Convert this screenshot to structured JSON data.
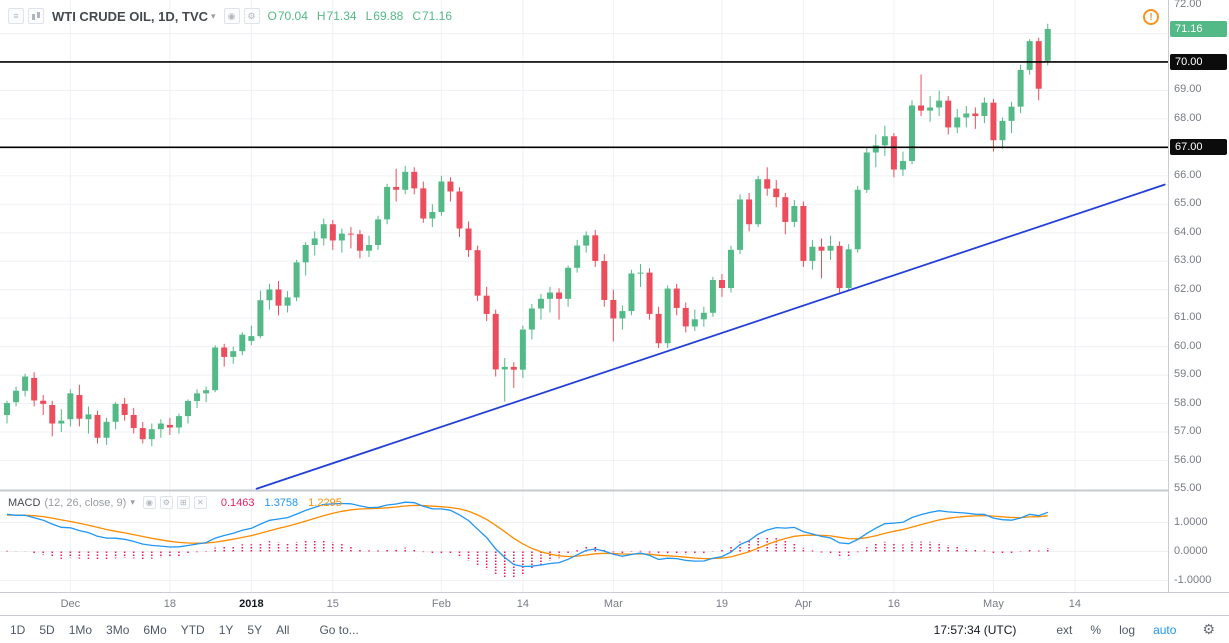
{
  "icons": {
    "menu": "≡",
    "caret": "▾",
    "eye": "◉",
    "gear": "⚙",
    "maximize": "⊞",
    "close": "✕",
    "alert": "!"
  },
  "colors": {
    "up": "#53b987",
    "down": "#eb4d5c",
    "trendline": "#2440d6",
    "hline": "#000000",
    "macd": "#2196f3",
    "signal": "#fb8c00",
    "hist": "#e91e63",
    "grid": "#eef0f4",
    "axis_text": "#787b86",
    "badge_green": "#53b987",
    "badge_black": "#0c0c0c"
  },
  "header": {
    "title": "WTI CRUDE OIL, 1D, TVC",
    "ohlc": {
      "o_label": "O",
      "o_value": "70.04",
      "h_label": "H",
      "h_value": "71.34",
      "l_label": "L",
      "l_value": "69.88",
      "c_label": "C",
      "c_value": "71.16"
    }
  },
  "chart_data": {
    "type": "candlestick",
    "symbol": "WTI CRUDE OIL",
    "interval": "1D",
    "exchange": "TVC",
    "price_axis": {
      "min": 55,
      "max": 72,
      "plain_ticks": [
        {
          "v": 72,
          "label": "72.00"
        },
        {
          "v": 69,
          "label": "69.00"
        },
        {
          "v": 68,
          "label": "68.00"
        },
        {
          "v": 66,
          "label": "66.00"
        },
        {
          "v": 65,
          "label": "65.00"
        },
        {
          "v": 64,
          "label": "64.00"
        },
        {
          "v": 63,
          "label": "63.00"
        },
        {
          "v": 62,
          "label": "62.00"
        },
        {
          "v": 61,
          "label": "61.00"
        },
        {
          "v": 60,
          "label": "60.00"
        },
        {
          "v": 59,
          "label": "59.00"
        },
        {
          "v": 58,
          "label": "58.00"
        },
        {
          "v": 57,
          "label": "57.00"
        },
        {
          "v": 56,
          "label": "56.00"
        },
        {
          "v": 55,
          "label": "55.00"
        }
      ],
      "badges": [
        {
          "v": 71.16,
          "label": "71.16",
          "bg": "#53b987"
        },
        {
          "v": 70.0,
          "label": "70.00",
          "bg": "#0c0c0c"
        },
        {
          "v": 67.0,
          "label": "67.00",
          "bg": "#0c0c0c"
        }
      ]
    },
    "horizontal_lines": [
      {
        "price": 70.0,
        "label": "70.00"
      },
      {
        "price": 67.0,
        "label": "67.00"
      }
    ],
    "trendline": {
      "from": {
        "index": 27.5,
        "price": 55.0
      },
      "to": {
        "index": 128,
        "price": 65.7
      }
    },
    "time_labels": [
      {
        "label": "Dec",
        "index": 7,
        "type": "month"
      },
      {
        "label": "18",
        "index": 18,
        "type": "day"
      },
      {
        "label": "2018",
        "index": 27,
        "type": "year"
      },
      {
        "label": "15",
        "index": 36,
        "type": "day"
      },
      {
        "label": "Feb",
        "index": 48,
        "type": "month"
      },
      {
        "label": "14",
        "index": 57,
        "type": "day"
      },
      {
        "label": "Mar",
        "index": 67,
        "type": "month"
      },
      {
        "label": "19",
        "index": 79,
        "type": "day"
      },
      {
        "label": "Apr",
        "index": 88,
        "type": "month"
      },
      {
        "label": "16",
        "index": 98,
        "type": "day"
      },
      {
        "label": "May",
        "index": 109,
        "type": "month"
      },
      {
        "label": "14",
        "index": 118,
        "type": "day"
      }
    ],
    "candles": [
      [
        57.6,
        58.1,
        57.3,
        58.02
      ],
      [
        58.05,
        58.6,
        57.9,
        58.45
      ],
      [
        58.45,
        59.05,
        58.25,
        58.95
      ],
      [
        58.9,
        59.1,
        57.9,
        58.11
      ],
      [
        58.1,
        58.3,
        57.6,
        57.99
      ],
      [
        57.95,
        58.1,
        56.85,
        57.3
      ],
      [
        57.3,
        57.8,
        57.0,
        57.4
      ],
      [
        57.45,
        58.5,
        57.2,
        58.36
      ],
      [
        58.3,
        58.66,
        57.2,
        57.47
      ],
      [
        57.45,
        57.9,
        56.95,
        57.62
      ],
      [
        57.6,
        57.75,
        56.6,
        56.8
      ],
      [
        56.8,
        57.5,
        56.55,
        57.36
      ],
      [
        57.36,
        58.05,
        57.1,
        57.99
      ],
      [
        57.99,
        58.2,
        57.4,
        57.6
      ],
      [
        57.6,
        57.85,
        56.95,
        57.14
      ],
      [
        57.14,
        57.35,
        56.6,
        56.75
      ],
      [
        56.75,
        57.3,
        56.5,
        57.1
      ],
      [
        57.1,
        57.45,
        56.8,
        57.3
      ],
      [
        57.25,
        57.5,
        56.9,
        57.16
      ],
      [
        57.16,
        57.65,
        56.95,
        57.56
      ],
      [
        57.56,
        58.15,
        57.3,
        58.09
      ],
      [
        58.09,
        58.5,
        57.85,
        58.36
      ],
      [
        58.36,
        58.6,
        58.05,
        58.47
      ],
      [
        58.47,
        60.05,
        58.4,
        59.97
      ],
      [
        59.97,
        60.1,
        59.3,
        59.64
      ],
      [
        59.64,
        60.0,
        59.4,
        59.84
      ],
      [
        59.84,
        60.51,
        59.7,
        60.42
      ],
      [
        60.2,
        60.74,
        60.05,
        60.37
      ],
      [
        60.37,
        61.97,
        60.3,
        61.63
      ],
      [
        61.63,
        62.21,
        61.3,
        62.01
      ],
      [
        62.01,
        62.3,
        61.1,
        61.44
      ],
      [
        61.44,
        61.95,
        61.2,
        61.73
      ],
      [
        61.73,
        63.05,
        61.6,
        62.96
      ],
      [
        62.96,
        63.67,
        62.5,
        63.57
      ],
      [
        63.57,
        64.05,
        63.2,
        63.8
      ],
      [
        63.8,
        64.5,
        63.55,
        64.3
      ],
      [
        64.3,
        64.45,
        63.4,
        63.73
      ],
      [
        63.73,
        64.15,
        63.3,
        63.97
      ],
      [
        63.97,
        64.2,
        63.45,
        63.95
      ],
      [
        63.95,
        64.1,
        63.1,
        63.37
      ],
      [
        63.37,
        63.9,
        63.15,
        63.57
      ],
      [
        63.57,
        64.6,
        63.4,
        64.47
      ],
      [
        64.47,
        65.72,
        64.3,
        65.61
      ],
      [
        65.61,
        66.25,
        65.1,
        65.51
      ],
      [
        65.51,
        66.35,
        65.35,
        66.14
      ],
      [
        66.14,
        66.3,
        65.35,
        65.56
      ],
      [
        65.56,
        65.8,
        64.35,
        64.5
      ],
      [
        64.5,
        65.0,
        64.2,
        64.73
      ],
      [
        64.73,
        66.0,
        64.6,
        65.8
      ],
      [
        65.8,
        65.95,
        65.1,
        65.45
      ],
      [
        65.45,
        65.6,
        63.85,
        64.15
      ],
      [
        64.15,
        64.4,
        63.15,
        63.39
      ],
      [
        63.39,
        63.55,
        61.6,
        61.79
      ],
      [
        61.79,
        62.1,
        60.9,
        61.15
      ],
      [
        61.15,
        61.3,
        58.95,
        59.2
      ],
      [
        59.2,
        59.6,
        58.07,
        59.29
      ],
      [
        59.29,
        59.45,
        58.55,
        59.19
      ],
      [
        59.19,
        60.74,
        58.9,
        60.6
      ],
      [
        60.6,
        61.5,
        60.25,
        61.34
      ],
      [
        61.34,
        61.85,
        60.95,
        61.68
      ],
      [
        61.68,
        62.1,
        61.2,
        61.9
      ],
      [
        61.9,
        62.05,
        60.95,
        61.68
      ],
      [
        61.68,
        62.85,
        61.4,
        62.77
      ],
      [
        62.77,
        63.75,
        62.6,
        63.55
      ],
      [
        63.55,
        64.05,
        63.3,
        63.91
      ],
      [
        63.91,
        64.1,
        62.8,
        63.01
      ],
      [
        63.01,
        63.25,
        61.4,
        61.64
      ],
      [
        61.64,
        62.0,
        60.18,
        60.99
      ],
      [
        60.99,
        61.45,
        60.6,
        61.25
      ],
      [
        61.25,
        62.7,
        61.1,
        62.57
      ],
      [
        62.57,
        62.9,
        62.1,
        62.6
      ],
      [
        62.6,
        62.75,
        60.95,
        61.15
      ],
      [
        61.15,
        61.4,
        59.95,
        60.12
      ],
      [
        60.12,
        62.15,
        59.95,
        62.04
      ],
      [
        62.04,
        62.2,
        61.1,
        61.36
      ],
      [
        61.36,
        61.55,
        60.5,
        60.71
      ],
      [
        60.71,
        61.3,
        60.55,
        60.96
      ],
      [
        60.96,
        61.4,
        60.7,
        61.19
      ],
      [
        61.19,
        62.45,
        61.05,
        62.34
      ],
      [
        62.34,
        62.55,
        61.75,
        62.06
      ],
      [
        62.06,
        63.55,
        61.9,
        63.4
      ],
      [
        63.4,
        65.35,
        63.25,
        65.17
      ],
      [
        65.17,
        65.4,
        64.05,
        64.3
      ],
      [
        64.3,
        66.0,
        64.2,
        65.88
      ],
      [
        65.88,
        66.3,
        65.3,
        65.55
      ],
      [
        65.55,
        65.85,
        64.9,
        65.25
      ],
      [
        65.25,
        65.4,
        63.95,
        64.38
      ],
      [
        64.38,
        65.15,
        64.2,
        64.94
      ],
      [
        64.94,
        65.1,
        62.8,
        63.01
      ],
      [
        63.01,
        63.75,
        62.7,
        63.51
      ],
      [
        63.51,
        63.8,
        62.4,
        63.37
      ],
      [
        63.37,
        63.9,
        63.05,
        63.54
      ],
      [
        63.54,
        63.7,
        61.85,
        62.06
      ],
      [
        62.06,
        63.6,
        61.95,
        63.42
      ],
      [
        63.42,
        65.65,
        63.3,
        65.51
      ],
      [
        65.51,
        67.0,
        65.4,
        66.82
      ],
      [
        66.82,
        67.45,
        66.3,
        67.07
      ],
      [
        67.07,
        67.76,
        66.7,
        67.39
      ],
      [
        67.39,
        67.5,
        65.95,
        66.22
      ],
      [
        66.22,
        66.85,
        66.0,
        66.52
      ],
      [
        66.52,
        68.65,
        66.4,
        68.47
      ],
      [
        68.47,
        69.56,
        68.1,
        68.29
      ],
      [
        68.29,
        68.8,
        67.9,
        68.4
      ],
      [
        68.4,
        69.0,
        68.1,
        68.64
      ],
      [
        68.64,
        68.8,
        67.45,
        67.7
      ],
      [
        67.7,
        68.35,
        67.5,
        68.05
      ],
      [
        68.05,
        68.45,
        67.7,
        68.19
      ],
      [
        68.19,
        68.4,
        67.65,
        68.1
      ],
      [
        68.1,
        68.75,
        67.85,
        68.57
      ],
      [
        68.57,
        68.7,
        66.85,
        67.25
      ],
      [
        67.25,
        68.05,
        66.95,
        67.93
      ],
      [
        67.93,
        68.6,
        67.5,
        68.43
      ],
      [
        68.43,
        69.9,
        68.2,
        69.72
      ],
      [
        69.72,
        70.8,
        69.55,
        70.73
      ],
      [
        70.73,
        70.85,
        68.65,
        69.06
      ],
      [
        70.04,
        71.34,
        69.88,
        71.16
      ]
    ],
    "macd": {
      "name": "MACD",
      "params": "(12, 26, close, 9)",
      "fast": 12,
      "slow": 26,
      "source": "close",
      "smoothing": 9,
      "hist_value": "0.1463",
      "macd_value": "1.3758",
      "signal_value": "1.2295",
      "ticks": [
        {
          "v": 1,
          "label": "1.0000"
        },
        {
          "v": 0,
          "label": "0.0000"
        },
        {
          "v": -1,
          "label": "-1.0000"
        }
      ]
    }
  },
  "toolbar": {
    "ranges": [
      "1D",
      "5D",
      "1Mo",
      "3Mo",
      "6Mo",
      "YTD",
      "1Y",
      "5Y",
      "All"
    ],
    "goto_label": "Go to...",
    "clock": "17:57:34 (UTC)",
    "ext_label": "ext",
    "percent_label": "%",
    "log_label": "log",
    "auto_label": "auto"
  }
}
